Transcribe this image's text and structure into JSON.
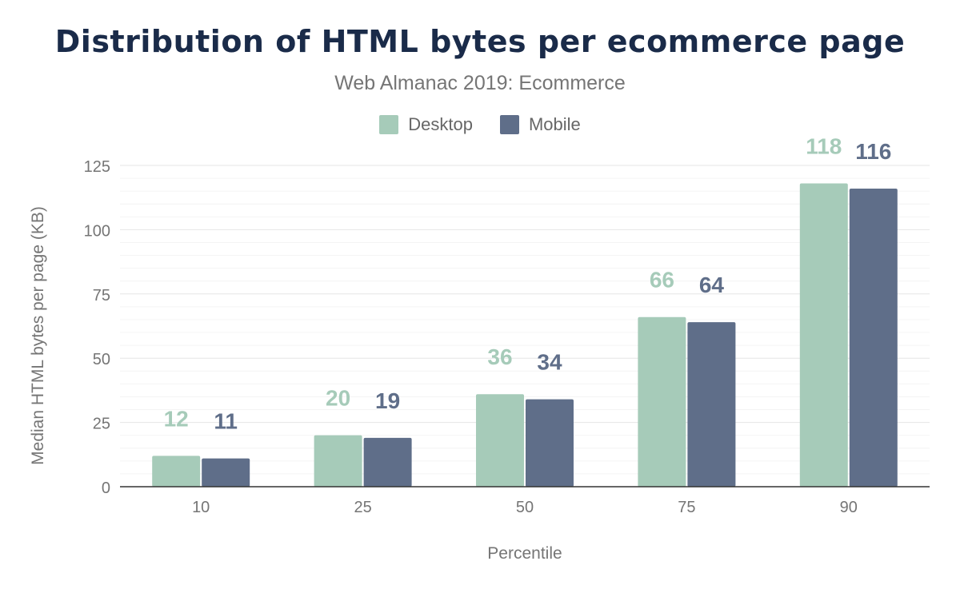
{
  "title": "Distribution of HTML bytes per ecommerce page",
  "subtitle": "Web Almanac 2019: Ecommerce",
  "colors": {
    "desktop": "#a6cbb9",
    "mobile": "#5f6e89",
    "title": "#1a2b49",
    "axis": "#757575",
    "grid": "#ebebeb"
  },
  "legend": [
    {
      "label": "Desktop",
      "color": "#a6cbb9"
    },
    {
      "label": "Mobile",
      "color": "#5f6e89"
    }
  ],
  "chart_data": {
    "type": "bar",
    "categories": [
      "10",
      "25",
      "50",
      "75",
      "90"
    ],
    "series": [
      {
        "name": "Desktop",
        "values": [
          12,
          20,
          36,
          66,
          118
        ]
      },
      {
        "name": "Mobile",
        "values": [
          11,
          19,
          34,
          64,
          116
        ]
      }
    ],
    "xlabel": "Percentile",
    "ylabel": "Median HTML bytes per page (KB)",
    "ylim": [
      0,
      125
    ],
    "yticks": [
      0,
      25,
      50,
      75,
      100,
      125
    ],
    "grid": true,
    "legend_position": "top-center"
  }
}
